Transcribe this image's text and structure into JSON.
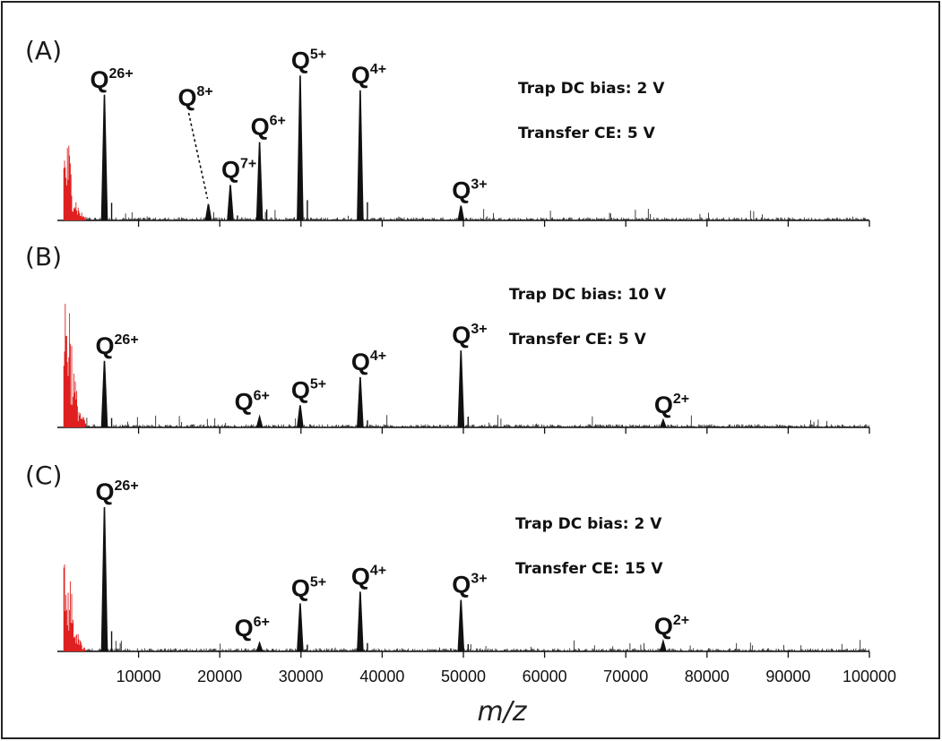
{
  "chart_data": {
    "type": "line",
    "xlabel": "m/z",
    "xlim": [
      0,
      100000
    ],
    "x_ticks": [
      10000,
      20000,
      30000,
      40000,
      50000,
      60000,
      70000,
      80000,
      90000,
      100000
    ],
    "x_tick_labels": [
      "10000",
      "20000",
      "30000",
      "40000",
      "50000",
      "60000",
      "70000",
      "80000",
      "90000",
      "100000"
    ],
    "grid": false,
    "low_mz_region": {
      "color": "#e02020",
      "range": [
        800,
        3500
      ]
    },
    "main_color": "#111111",
    "panels": [
      {
        "letter": "(A)",
        "conditions": [
          "Trap DC bias: 2 V",
          "Transfer CE: 5 V"
        ],
        "peaks": [
          {
            "base": "Q",
            "charge": "26+",
            "mz": 5800,
            "rel_height": 0.85
          },
          {
            "base": "Q",
            "charge": "8+",
            "mz": 18600,
            "rel_height": 0.11
          },
          {
            "base": "Q",
            "charge": "7+",
            "mz": 21300,
            "rel_height": 0.24
          },
          {
            "base": "Q",
            "charge": "6+",
            "mz": 24900,
            "rel_height": 0.53
          },
          {
            "base": "Q",
            "charge": "5+",
            "mz": 29900,
            "rel_height": 0.98
          },
          {
            "base": "Q",
            "charge": "4+",
            "mz": 37300,
            "rel_height": 0.88
          },
          {
            "base": "Q",
            "charge": "3+",
            "mz": 49700,
            "rel_height": 0.1
          }
        ]
      },
      {
        "letter": "(B)",
        "conditions": [
          "Trap DC bias: 10 V",
          "Transfer CE: 5 V"
        ],
        "peaks": [
          {
            "base": "Q",
            "charge": "26+",
            "mz": 5800,
            "rel_height": 0.45
          },
          {
            "base": "Q",
            "charge": "6+",
            "mz": 24900,
            "rel_height": 0.07
          },
          {
            "base": "Q",
            "charge": "5+",
            "mz": 29900,
            "rel_height": 0.15
          },
          {
            "base": "Q",
            "charge": "4+",
            "mz": 37300,
            "rel_height": 0.34
          },
          {
            "base": "Q",
            "charge": "3+",
            "mz": 49700,
            "rel_height": 0.52
          },
          {
            "base": "Q",
            "charge": "2+",
            "mz": 74600,
            "rel_height": 0.05
          }
        ]
      },
      {
        "letter": "(C)",
        "conditions": [
          "Trap DC bias: 2 V",
          "Transfer CE: 15 V"
        ],
        "peaks": [
          {
            "base": "Q",
            "charge": "26+",
            "mz": 5800,
            "rel_height": 0.87
          },
          {
            "base": "Q",
            "charge": "6+",
            "mz": 24900,
            "rel_height": 0.05
          },
          {
            "base": "Q",
            "charge": "5+",
            "mz": 29900,
            "rel_height": 0.29
          },
          {
            "base": "Q",
            "charge": "4+",
            "mz": 37300,
            "rel_height": 0.36
          },
          {
            "base": "Q",
            "charge": "3+",
            "mz": 49700,
            "rel_height": 0.31
          },
          {
            "base": "Q",
            "charge": "2+",
            "mz": 74600,
            "rel_height": 0.06
          }
        ]
      }
    ]
  }
}
